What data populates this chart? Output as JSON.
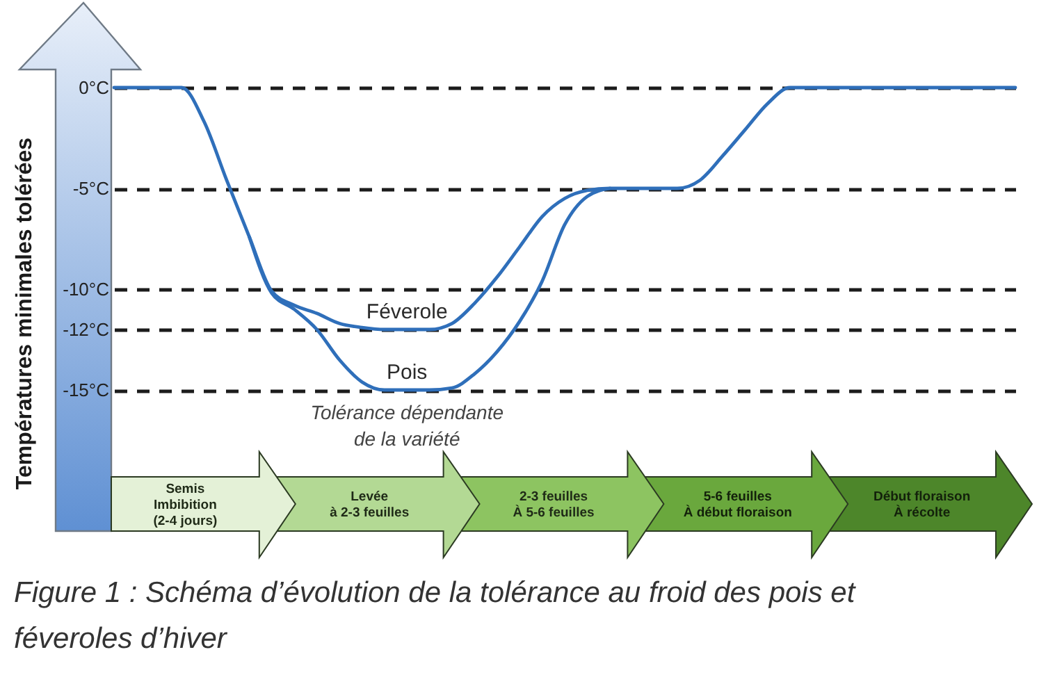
{
  "chart_data": {
    "type": "line",
    "title": "Figure 1 : Schéma d’évolution de la tolérance au froid des pois et féveroles d’hiver",
    "ylabel": "Températures minimales tolérées",
    "categories": [
      null,
      null,
      null,
      null,
      null,
      null,
      null,
      null,
      null,
      null,
      null,
      null,
      null,
      null,
      null,
      null,
      null,
      null,
      null,
      null,
      null,
      null,
      null,
      null,
      null,
      null,
      null,
      null,
      null,
      null,
      null,
      null,
      null,
      null,
      null,
      null,
      null,
      null,
      null,
      null,
      null
    ],
    "series": [
      {
        "name": "Féverole",
        "color": "#2f6fba",
        "values": [
          0,
          0,
          0,
          0,
          -1.7,
          -4.6,
          -7.4,
          -10.1,
          -10.8,
          -11.2,
          -11.7,
          -11.9,
          -12,
          -12,
          -12,
          -11.7,
          -10.7,
          -9.4,
          -7.9,
          -6.4,
          -5.5,
          -5.1,
          -5,
          -5,
          -5,
          -5,
          -4.6,
          -3.4,
          -2.1,
          -0.8,
          0,
          0,
          0,
          0,
          0,
          0,
          0,
          0,
          0,
          0,
          0
        ]
      },
      {
        "name": "Pois",
        "color": "#2f6fba",
        "values": [
          null,
          null,
          null,
          null,
          null,
          null,
          -7.4,
          -10.2,
          -11,
          -12,
          -13.5,
          -14.6,
          -15,
          -15,
          -15,
          -14.9,
          -14.2,
          -13.1,
          -11.6,
          -9.6,
          -6.8,
          -5.4,
          -5,
          null,
          null,
          null,
          null,
          null,
          null,
          null,
          null,
          null,
          null,
          null,
          null,
          null,
          null,
          null,
          null,
          null,
          null
        ]
      }
    ],
    "ylim": [
      -22,
      0
    ],
    "yticks": [
      {
        "value": -15,
        "label": "-15°C"
      },
      {
        "value": -12,
        "label": "-12°C"
      },
      {
        "value": -10,
        "label": "-10°C"
      },
      {
        "value": -5,
        "label": "-5°C"
      },
      {
        "value": 0,
        "label": "0°C"
      }
    ],
    "grid": "y",
    "tick_labels": "y",
    "line_style": "solid",
    "annotations": [
      "Tolérance dépendante\nde la variété",
      "Semis\nImbibition\n(2-4 jours)",
      "Levée\nà 2-3 feuilles",
      "2-3 feuilles\nÀ 5-6 feuilles",
      "5-6 feuilles\nÀ début floraison",
      "Début floraison\nÀ récolte"
    ]
  }
}
